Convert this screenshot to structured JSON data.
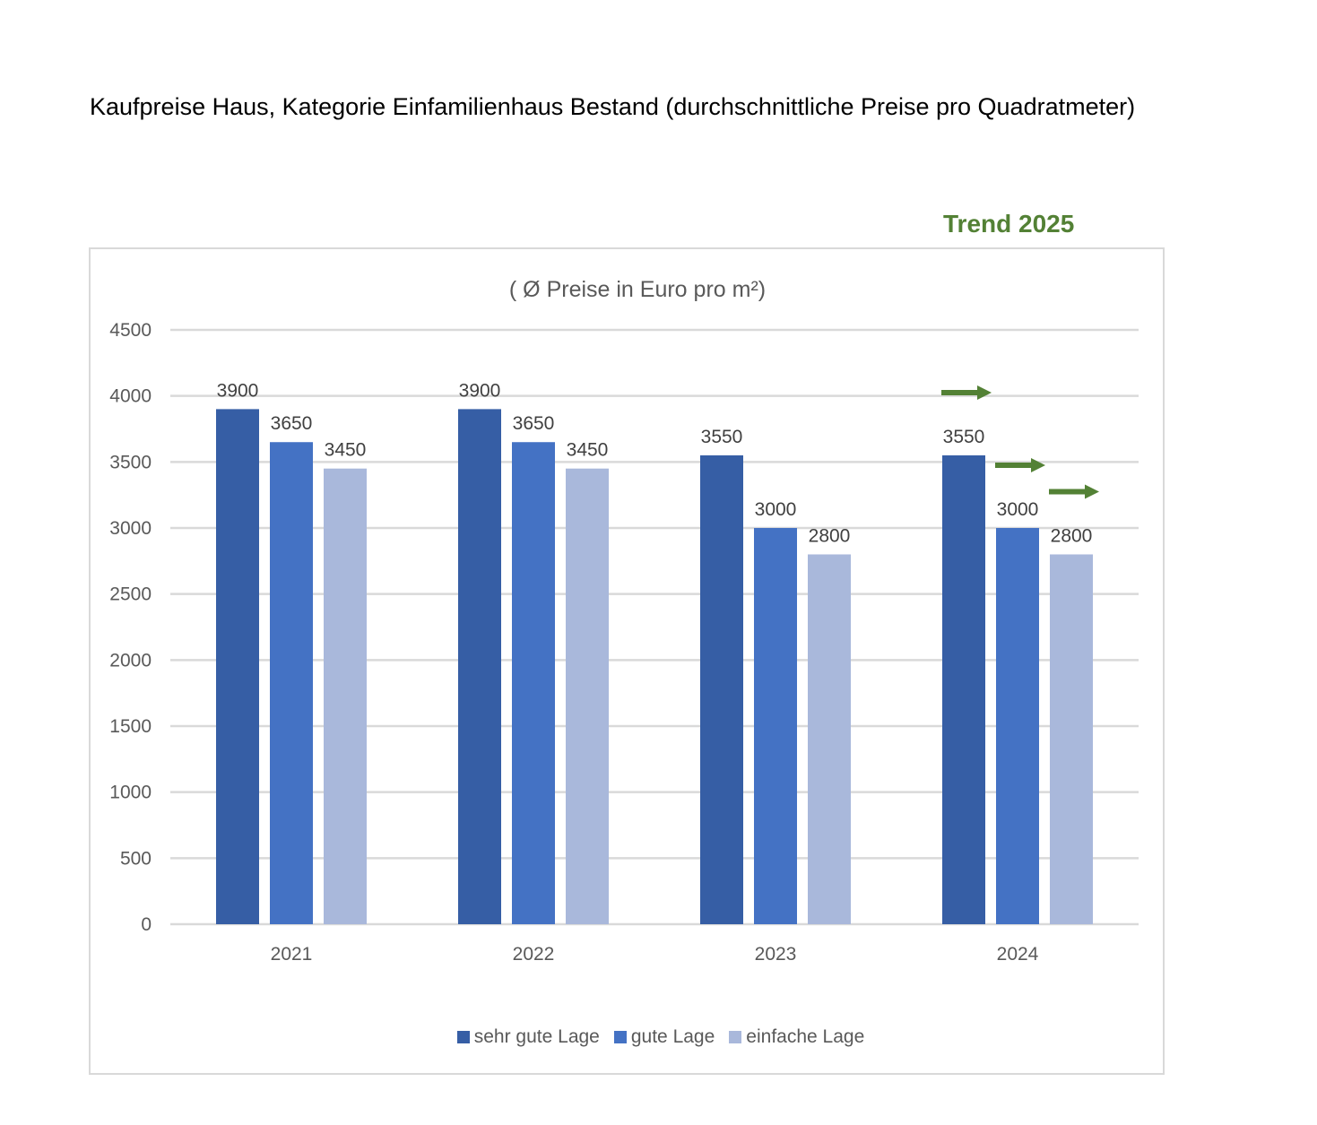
{
  "page_title": "Kaufpreise Haus, Kategorie Einfamilienhaus Bestand (durchschnittliche Preise pro Quadratmeter)",
  "trend_label": "Trend 2025",
  "colors": {
    "trend": "#538135",
    "text": "#595959",
    "grid": "#d9d9d9"
  },
  "chart_data": {
    "type": "bar",
    "title": "( Ø Preise in Euro pro m²)",
    "xlabel": "",
    "ylabel": "",
    "ylim": [
      0,
      4500
    ],
    "yticks": [
      0,
      500,
      1000,
      1500,
      2000,
      2500,
      3000,
      3500,
      4000,
      4500
    ],
    "categories": [
      "2021",
      "2022",
      "2023",
      "2024"
    ],
    "series": [
      {
        "name": "sehr gute Lage",
        "color": "#365ea5",
        "values": [
          3900,
          3900,
          3550,
          3550
        ]
      },
      {
        "name": "gute Lage",
        "color": "#4472c4",
        "values": [
          3650,
          3650,
          3000,
          3000
        ]
      },
      {
        "name": "einfache Lage",
        "color": "#a9b8db",
        "values": [
          3450,
          3450,
          2800,
          2800
        ]
      }
    ],
    "grid": true,
    "legend_position": "bottom",
    "annotations": [
      {
        "type": "trend-arrow",
        "direction": "right",
        "category": "2024",
        "series": "sehr gute Lage"
      },
      {
        "type": "trend-arrow",
        "direction": "right",
        "category": "2024",
        "series": "gute Lage"
      },
      {
        "type": "trend-arrow",
        "direction": "right",
        "category": "2024",
        "series": "einfache Lage"
      }
    ]
  }
}
